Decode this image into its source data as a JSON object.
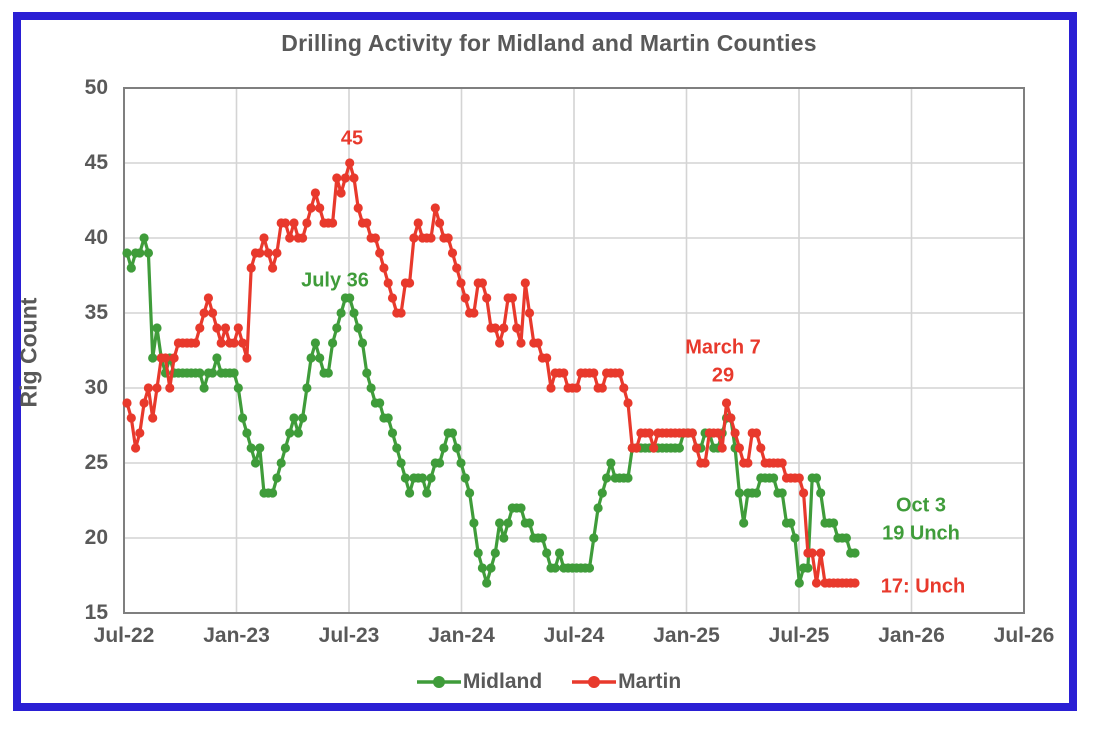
{
  "window": {
    "border_color": "#2A1FD4",
    "background": "#FFFFFF"
  },
  "chart_data": {
    "type": "line",
    "title": "Drilling Activity for Midland and Martin Counties",
    "ylabel": "Rig Count",
    "xlabel": "",
    "ylim": [
      15,
      50
    ],
    "y_ticks": [
      50,
      45,
      40,
      35,
      30,
      25,
      20,
      15
    ],
    "x_tick_labels": [
      "Jul-22",
      "Jan-23",
      "Jul-23",
      "Jan-24",
      "Jul-24",
      "Jan-25",
      "Jul-25",
      "Jan-26",
      "Jul-26"
    ],
    "x_note": "weekly rig counts from mid-July 2022 through Oct 3, 2025; x-axis extends (empty) to Jul-26",
    "grid": true,
    "legend_position": "bottom",
    "text_color": "#595959",
    "grid_color": "#D4D4D4",
    "frame_color": "#7F7F7F",
    "series": [
      {
        "name": "Midland",
        "color": "#3F9C3A",
        "values": [
          39,
          38,
          39,
          39,
          40,
          39,
          32,
          34,
          32,
          31,
          32,
          31,
          31,
          31,
          31,
          31,
          31,
          31,
          30,
          31,
          31,
          32,
          31,
          31,
          31,
          31,
          30,
          28,
          27,
          26,
          25,
          26,
          23,
          23,
          23,
          24,
          25,
          26,
          27,
          28,
          27,
          28,
          30,
          32,
          33,
          32,
          31,
          31,
          33,
          34,
          35,
          36,
          36,
          35,
          34,
          33,
          31,
          30,
          29,
          29,
          28,
          28,
          27,
          26,
          25,
          24,
          23,
          24,
          24,
          24,
          23,
          24,
          25,
          25,
          26,
          27,
          27,
          26,
          25,
          24,
          23,
          21,
          19,
          18,
          17,
          18,
          19,
          21,
          20,
          21,
          22,
          22,
          22,
          21,
          21,
          20,
          20,
          20,
          19,
          18,
          18,
          19,
          18,
          18,
          18,
          18,
          18,
          18,
          18,
          20,
          22,
          23,
          24,
          25,
          24,
          24,
          24,
          24,
          26,
          26,
          26,
          26,
          26,
          26,
          26,
          26,
          26,
          26,
          26,
          26,
          27,
          27,
          27,
          26,
          26,
          27,
          27,
          26,
          26,
          27,
          28,
          28,
          26,
          23,
          21,
          23,
          23,
          23,
          24,
          24,
          24,
          24,
          23,
          23,
          21,
          21,
          20,
          17,
          18,
          18,
          24,
          24,
          23,
          21,
          21,
          21,
          20,
          20,
          20,
          19,
          19
        ]
      },
      {
        "name": "Martin",
        "color": "#E8392C",
        "values": [
          29,
          28,
          26,
          27,
          29,
          30,
          28,
          30,
          32,
          32,
          30,
          32,
          33,
          33,
          33,
          33,
          33,
          34,
          35,
          36,
          35,
          34,
          33,
          34,
          33,
          33,
          34,
          33,
          32,
          38,
          39,
          39,
          40,
          39,
          38,
          39,
          41,
          41,
          40,
          41,
          40,
          40,
          41,
          42,
          43,
          42,
          41,
          41,
          41,
          44,
          43,
          44,
          45,
          44,
          42,
          41,
          41,
          40,
          40,
          39,
          38,
          37,
          36,
          35,
          35,
          37,
          37,
          40,
          41,
          40,
          40,
          40,
          42,
          41,
          40,
          40,
          39,
          38,
          37,
          36,
          35,
          35,
          37,
          37,
          36,
          34,
          34,
          33,
          34,
          36,
          36,
          34,
          33,
          37,
          35,
          33,
          33,
          32,
          32,
          30,
          31,
          31,
          31,
          30,
          30,
          30,
          31,
          31,
          31,
          31,
          30,
          30,
          31,
          31,
          31,
          31,
          30,
          29,
          26,
          26,
          27,
          27,
          27,
          26,
          27,
          27,
          27,
          27,
          27,
          27,
          27,
          27,
          27,
          26,
          25,
          25,
          27,
          27,
          27,
          26,
          29,
          28,
          27,
          26,
          25,
          25,
          27,
          27,
          26,
          25,
          25,
          25,
          25,
          25,
          24,
          24,
          24,
          24,
          23,
          19,
          19,
          17,
          19,
          17,
          17,
          17,
          17,
          17,
          17,
          17,
          17
        ]
      }
    ],
    "annotations": [
      {
        "id": "martin-peak",
        "text": "45",
        "series": "Martin"
      },
      {
        "id": "midland-peak",
        "text": "July 36",
        "series": "Midland"
      },
      {
        "id": "martin-march",
        "text": "March 7",
        "series": "Martin"
      },
      {
        "id": "martin-march-value",
        "text": "29",
        "series": "Martin"
      },
      {
        "id": "midland-latest-date",
        "text": "Oct 3",
        "series": "Midland"
      },
      {
        "id": "midland-latest-value",
        "text": "19 Unch",
        "series": "Midland"
      },
      {
        "id": "martin-latest",
        "text": "17: Unch",
        "series": "Martin"
      }
    ]
  }
}
